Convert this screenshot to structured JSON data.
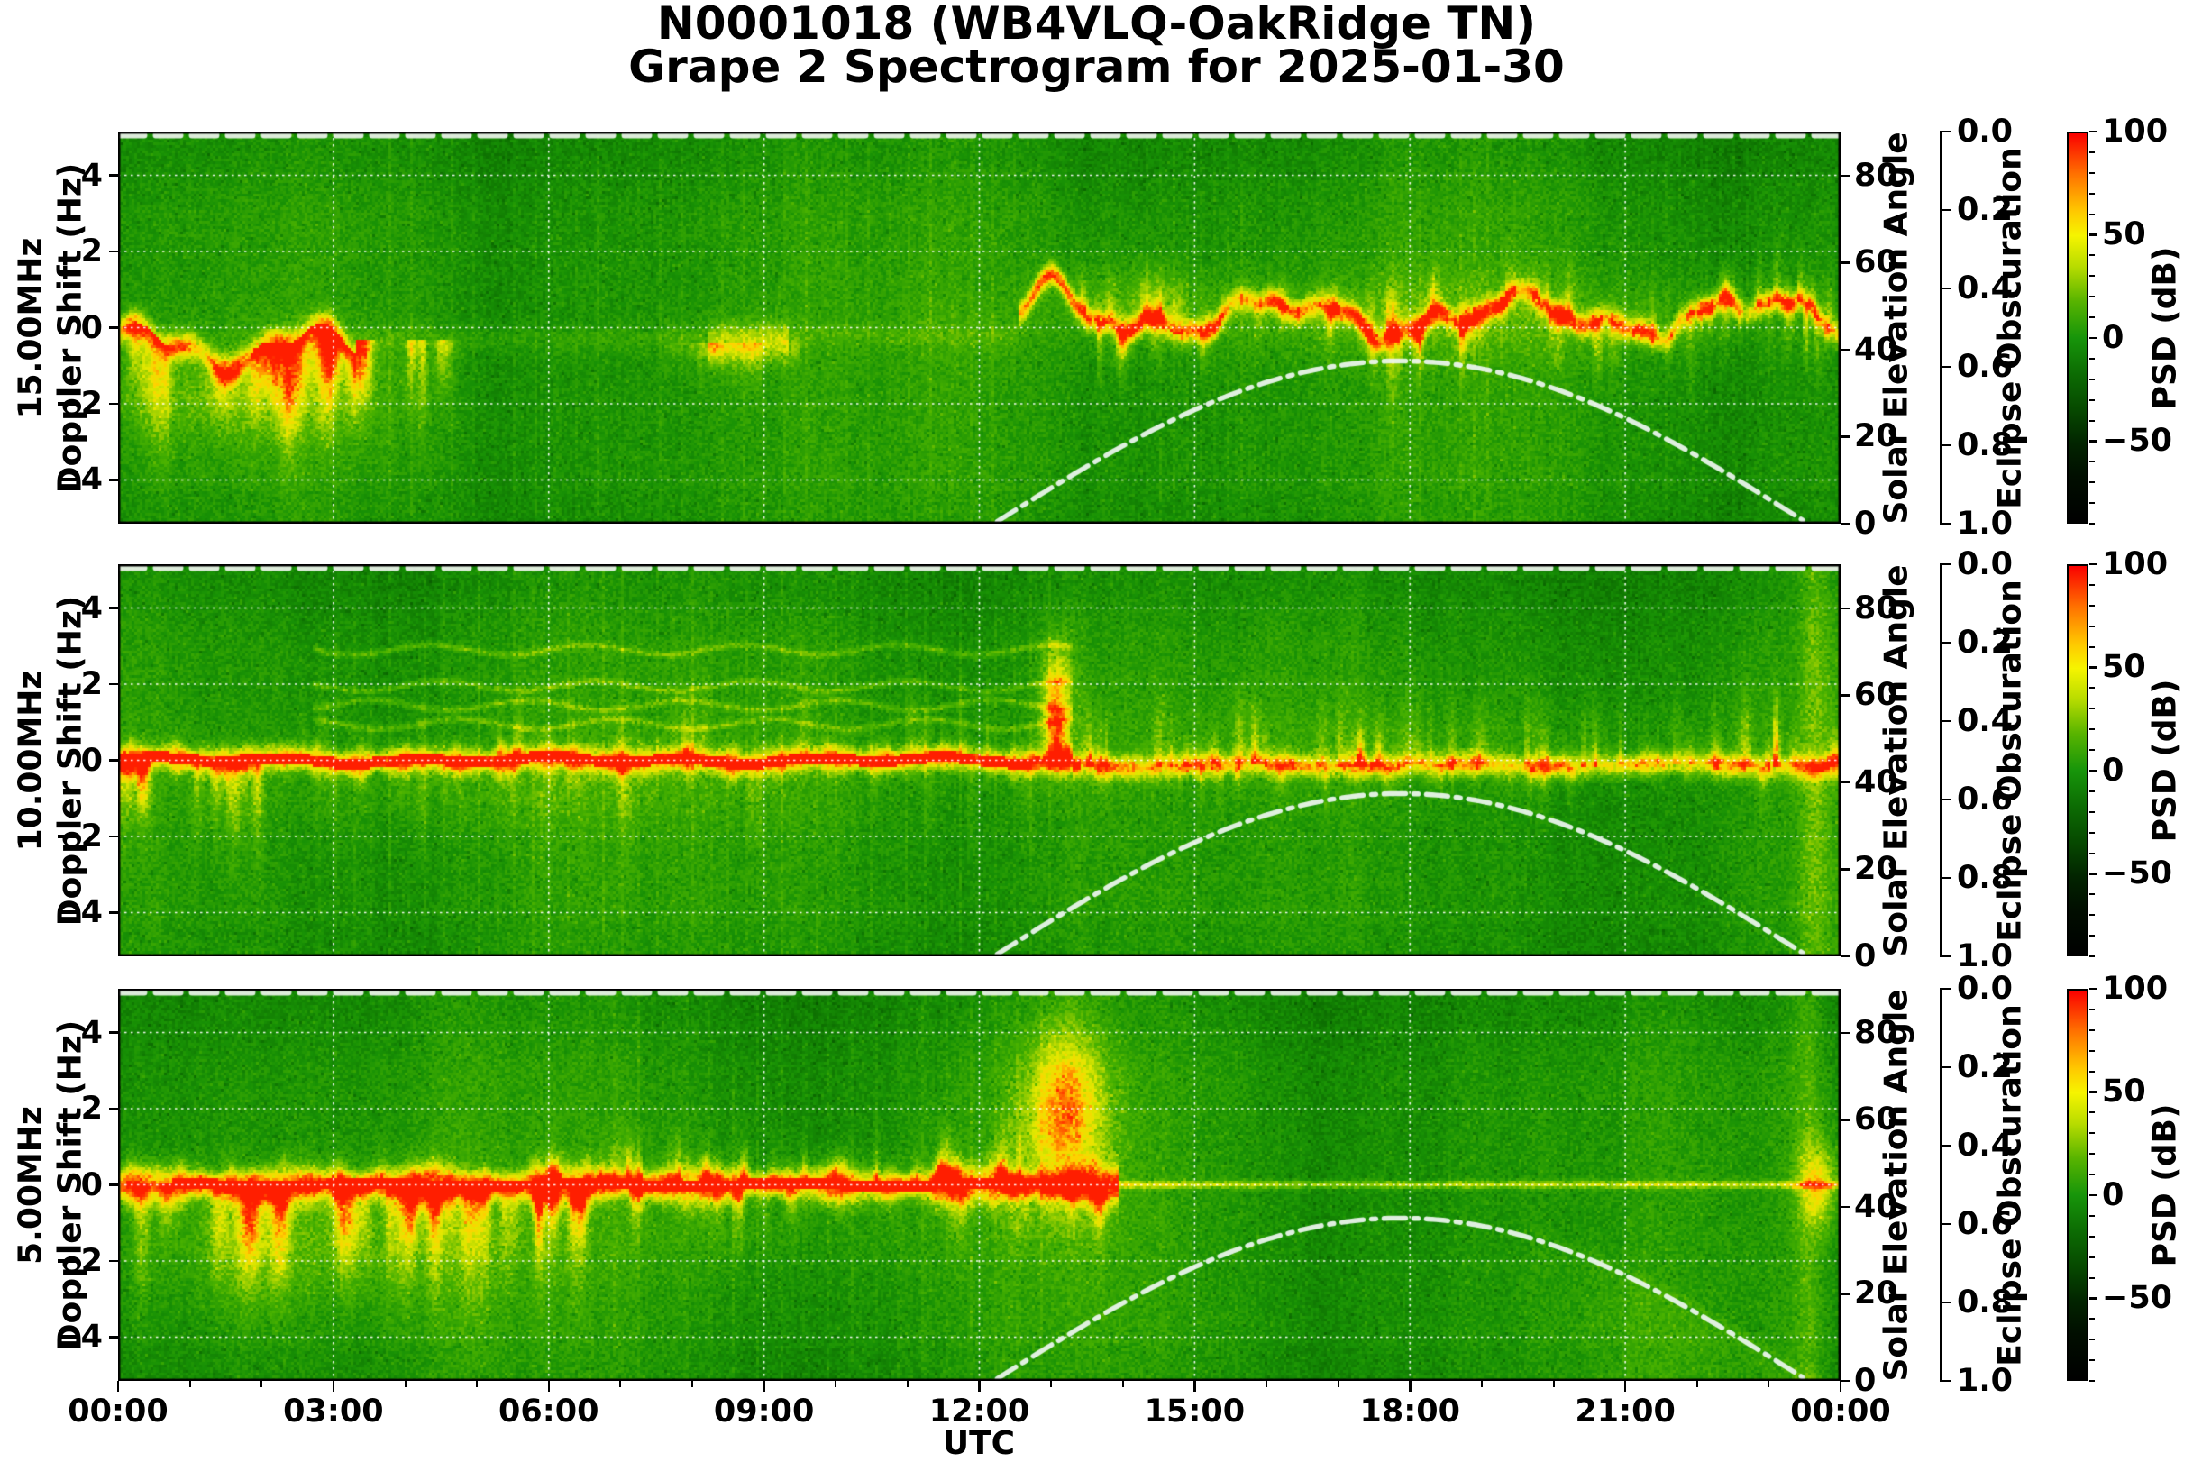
{
  "title_line1": "N0001018 (WB4VLQ-OakRidge TN)",
  "title_line2": "Grape 2 Spectrogram for 2025-01-30",
  "xlabel": "UTC",
  "panels": [
    {
      "frequency_label": "15.00MHz"
    },
    {
      "frequency_label": "10.00MHz"
    },
    {
      "frequency_label": "5.00MHz"
    }
  ],
  "axes": {
    "x": {
      "label": "UTC",
      "tick_labels": [
        "00:00",
        "03:00",
        "06:00",
        "09:00",
        "12:00",
        "15:00",
        "18:00",
        "21:00",
        "00:00"
      ]
    },
    "y": {
      "label_suffix": "Doppler Shift  (Hz)",
      "tick_labels": [
        "4",
        "2",
        "0",
        "−2",
        "−4"
      ]
    },
    "solar": {
      "label": "Solar Elevation Angle",
      "tick_labels": [
        "80",
        "60",
        "40",
        "20",
        "0"
      ]
    },
    "eclipse": {
      "label": "Eclipse Obscuration",
      "tick_labels": [
        "0.0",
        "0.2",
        "0.4",
        "0.6",
        "0.8",
        "1.0"
      ]
    },
    "colorbar": {
      "label": "PSD (dB)",
      "tick_labels": [
        "100",
        "50",
        "0",
        "−50"
      ]
    }
  },
  "chart_data": {
    "type": "heatmap",
    "subtype": "doppler-spectrogram",
    "title": "N0001018 (WB4VLQ-OakRidge TN)",
    "subtitle": "Grape 2 Spectrogram for 2025-01-30",
    "station": "N0001018 (WB4VLQ-OakRidge TN)",
    "date": "2025-01-30",
    "x_axis": {
      "label": "UTC",
      "unit": "hours",
      "range": [
        0,
        24
      ],
      "major_tick_hours": [
        0,
        3,
        6,
        9,
        12,
        15,
        18,
        21,
        24
      ],
      "minor_tick_hours": 1
    },
    "y_axis": {
      "label": "Doppler Shift (Hz)",
      "range": [
        -5.15,
        5.15
      ],
      "tick_values": [
        4,
        2,
        0,
        -2,
        -4
      ]
    },
    "solar_axis": {
      "label": "Solar Elevation Angle",
      "range": [
        0,
        90.1
      ],
      "tick_values": [
        80,
        60,
        40,
        20,
        0
      ]
    },
    "eclipse_axis": {
      "label": "Eclipse Obscuration",
      "range": [
        0.0,
        1.0
      ],
      "inverted": true,
      "tick_values": [
        0.0,
        0.2,
        0.4,
        0.6,
        0.8,
        1.0
      ]
    },
    "colorbar": {
      "label": "PSD (dB)",
      "range": [
        -90,
        100
      ],
      "tick_values": [
        100,
        50,
        0,
        -50
      ],
      "minor_tick_step": 10,
      "gradient_stops": [
        {
          "v": 100,
          "c": "#fa0000"
        },
        {
          "v": 80,
          "c": "#ff7200"
        },
        {
          "v": 62,
          "c": "#ffc800"
        },
        {
          "v": 50,
          "c": "#f6f400"
        },
        {
          "v": 35,
          "c": "#b8dc00"
        },
        {
          "v": 18,
          "c": "#58b400"
        },
        {
          "v": 0,
          "c": "#17950a"
        },
        {
          "v": -18,
          "c": "#0c6b03"
        },
        {
          "v": -36,
          "c": "#064700"
        },
        {
          "v": -52,
          "c": "#022400"
        },
        {
          "v": -68,
          "c": "#010e00"
        },
        {
          "v": -90,
          "c": "#000000"
        }
      ]
    },
    "solar_elevation_curve": {
      "style": "white dash-dot",
      "sunrise_utc": "12:15",
      "peak_utc": "17:50",
      "peak_elevation_deg": 37.4,
      "sunset_utc": "23:30"
    },
    "eclipse_obscuration_trace": {
      "style": "white dashed line along panel top",
      "constant_value": 0.0
    },
    "panels": [
      {
        "frequency_mhz": 15.0,
        "label": "15.00MHz",
        "features": [
          "Yellow Doppler trace wandering between 0 and −2 Hz from 00:00–03:00 with diffuse plumes down to −3 Hz",
          "Weak/absent carrier trace about 03:30–12:30 with faint patches near 08:30–09:30",
          "Bright hook-shaped excursion up to about +1.5 Hz near 13:00",
          "Strong chaotic trace around 0 to +1 Hz from 13:30–24:00 with spikes to ±2 Hz"
        ]
      },
      {
        "frequency_mhz": 10.0,
        "label": "10.00MHz",
        "features": [
          "Continuous strong carrier trace at 0 Hz with orange-red core from 00:00–12:45",
          "Thin wavy sidebands near +1, +1.5, +2 and +3 Hz between about 03:00 and 13:00",
          "Burst reaching about +3 Hz around 13:00",
          "Trace slightly below 0 Hz after 13:30 with vertical plumes",
          "Bright full-height noise column near 23:40"
        ]
      },
      {
        "frequency_mhz": 5.0,
        "label": "5.00MHz",
        "features": [
          "Strong carrier at 0 Hz with orange-red core from about 00:45–13:45",
          "Broad yellow plumes below the carrier from 00:00–06:00 reaching −2.5 Hz",
          "Diffuse bright burst up to about +4 Hz around 12:30–14:00",
          "Carrier collapses to a thin faint line after 14:00",
          "Lighter noise region in lower right after about 19:00 and bright column near 23:40"
        ]
      }
    ]
  }
}
